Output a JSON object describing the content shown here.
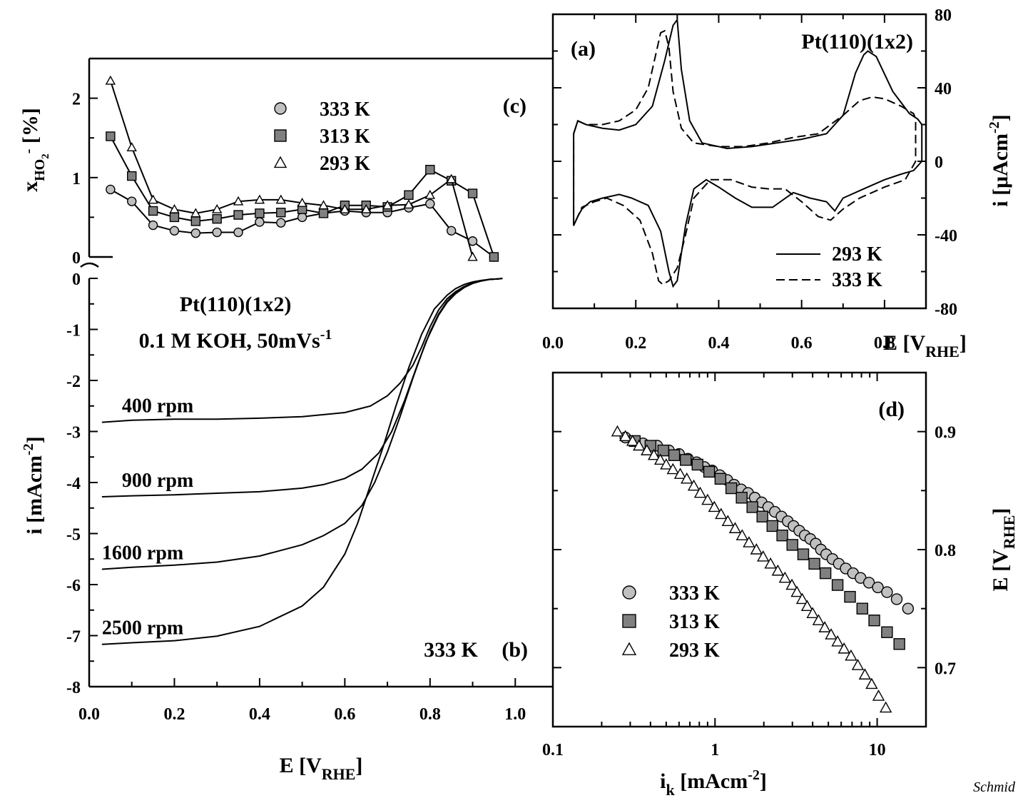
{
  "credit": "Schmid",
  "chart_data": [
    {
      "id": "a",
      "type": "line",
      "panel_label": "(a)",
      "title": "Pt(110)(1x2)",
      "xlabel": "E [V",
      "xlabel_sub": "RHE",
      "xlabel_end": "]",
      "ylabel": "i [μAcm",
      "ylabel_sup": "-2",
      "ylabel_end": "]",
      "xlim": [
        0.0,
        0.9
      ],
      "ylim": [
        -80,
        80
      ],
      "xticks": [
        "0.0",
        "0.2",
        "0.4",
        "0.6",
        "0.8"
      ],
      "yticks": [
        "80",
        "40",
        "0",
        "-40",
        "-80"
      ],
      "series": [
        {
          "name": "293 K",
          "dash": "solid",
          "x": [
            0.05,
            0.06,
            0.08,
            0.12,
            0.16,
            0.2,
            0.24,
            0.27,
            0.29,
            0.3,
            0.31,
            0.33,
            0.36,
            0.42,
            0.48,
            0.54,
            0.6,
            0.66,
            0.7,
            0.73,
            0.75,
            0.76,
            0.78,
            0.82,
            0.86,
            0.88,
            0.89,
            0.89,
            0.87,
            0.84,
            0.8,
            0.75,
            0.7,
            0.68,
            0.66,
            0.62,
            0.58,
            0.53,
            0.48,
            0.44,
            0.4,
            0.37,
            0.34,
            0.32,
            0.3,
            0.29,
            0.28,
            0.26,
            0.23,
            0.19,
            0.16,
            0.12,
            0.09,
            0.07,
            0.06,
            0.05,
            0.05
          ],
          "y": [
            15,
            22,
            20,
            18,
            17,
            20,
            30,
            55,
            74,
            77,
            50,
            22,
            10,
            7,
            8,
            10,
            12,
            15,
            25,
            48,
            58,
            60,
            57,
            38,
            26,
            23,
            20,
            0,
            -5,
            -7,
            -10,
            -15,
            -20,
            -27,
            -22,
            -20,
            -17,
            -25,
            -25,
            -20,
            -14,
            -10,
            -15,
            -35,
            -65,
            -68,
            -60,
            -38,
            -24,
            -20,
            -18,
            -20,
            -22,
            -26,
            -30,
            -35,
            -15
          ],
          "labels": false
        },
        {
          "name": "333 K",
          "dash": "dashed",
          "x": [
            0.05,
            0.06,
            0.08,
            0.12,
            0.16,
            0.2,
            0.23,
            0.25,
            0.26,
            0.27,
            0.28,
            0.29,
            0.31,
            0.34,
            0.4,
            0.46,
            0.52,
            0.58,
            0.64,
            0.7,
            0.74,
            0.77,
            0.8,
            0.84,
            0.87,
            0.875,
            0.875,
            0.85,
            0.8,
            0.74,
            0.7,
            0.67,
            0.64,
            0.6,
            0.56,
            0.52,
            0.48,
            0.43,
            0.38,
            0.34,
            0.32,
            0.3,
            0.28,
            0.265,
            0.255,
            0.24,
            0.21,
            0.17,
            0.13,
            0.1,
            0.07,
            0.06,
            0.05,
            0.05
          ],
          "y": [
            15,
            22,
            20,
            20,
            22,
            28,
            40,
            60,
            70,
            71,
            62,
            38,
            18,
            10,
            8,
            8,
            10,
            13,
            15,
            25,
            33,
            35,
            34,
            30,
            26,
            23,
            0,
            -10,
            -14,
            -20,
            -26,
            -32,
            -30,
            -22,
            -15,
            -15,
            -14,
            -10,
            -10,
            -20,
            -40,
            -58,
            -65,
            -67,
            -65,
            -50,
            -32,
            -24,
            -20,
            -22,
            -25,
            -30,
            -35,
            -15
          ]
        }
      ]
    },
    {
      "id": "b",
      "type": "line",
      "panel_label": "(b)",
      "title": "Pt(110)(1x2)",
      "subtitle": "0.1 M KOH, 50mVs",
      "subtitle_sup": "-1",
      "annotation": "333 K",
      "xlabel": "E [V",
      "xlabel_sub": "RHE",
      "xlabel_end": "]",
      "ylabel": "i [mAcm",
      "ylabel_sup": "-2",
      "ylabel_end": "]",
      "xlim": [
        0.0,
        1.1
      ],
      "ylim": [
        -8,
        0
      ],
      "xticks": [
        "0.0",
        "0.2",
        "0.4",
        "0.6",
        "0.8",
        "1.0"
      ],
      "yticks": [
        "0",
        "-1",
        "-2",
        "-3",
        "-4",
        "-5",
        "-6",
        "-7",
        "-8"
      ],
      "series": [
        {
          "name": "400 rpm",
          "x": [
            0.03,
            0.1,
            0.2,
            0.3,
            0.4,
            0.5,
            0.6,
            0.66,
            0.7,
            0.73,
            0.76,
            0.78,
            0.8,
            0.82,
            0.84,
            0.86,
            0.88,
            0.9,
            0.92,
            0.94,
            0.96,
            0.97
          ],
          "y": [
            -2.82,
            -2.78,
            -2.76,
            -2.76,
            -2.74,
            -2.71,
            -2.63,
            -2.5,
            -2.3,
            -2.05,
            -1.7,
            -1.35,
            -0.95,
            -0.62,
            -0.4,
            -0.26,
            -0.16,
            -0.09,
            -0.05,
            -0.02,
            -0.01,
            0
          ]
        },
        {
          "name": "900 rpm",
          "x": [
            0.03,
            0.1,
            0.2,
            0.3,
            0.4,
            0.5,
            0.55,
            0.6,
            0.64,
            0.68,
            0.71,
            0.74,
            0.77,
            0.8,
            0.82,
            0.84,
            0.86,
            0.88,
            0.9,
            0.92,
            0.94,
            0.96,
            0.97
          ],
          "y": [
            -4.28,
            -4.26,
            -4.24,
            -4.21,
            -4.18,
            -4.11,
            -4.04,
            -3.92,
            -3.74,
            -3.42,
            -3.0,
            -2.4,
            -1.7,
            -1.05,
            -0.7,
            -0.45,
            -0.28,
            -0.17,
            -0.1,
            -0.05,
            -0.02,
            -0.01,
            0
          ]
        },
        {
          "name": "1600 rpm",
          "x": [
            0.03,
            0.1,
            0.2,
            0.3,
            0.4,
            0.5,
            0.55,
            0.6,
            0.64,
            0.67,
            0.7,
            0.73,
            0.76,
            0.79,
            0.82,
            0.84,
            0.86,
            0.88,
            0.9,
            0.92,
            0.94,
            0.96,
            0.97
          ],
          "y": [
            -5.7,
            -5.66,
            -5.62,
            -5.56,
            -5.44,
            -5.22,
            -5.04,
            -4.8,
            -4.45,
            -4.0,
            -3.4,
            -2.7,
            -1.95,
            -1.25,
            -0.72,
            -0.47,
            -0.3,
            -0.18,
            -0.1,
            -0.05,
            -0.02,
            -0.01,
            0
          ]
        },
        {
          "name": "2500 rpm",
          "x": [
            0.03,
            0.1,
            0.2,
            0.3,
            0.4,
            0.5,
            0.55,
            0.6,
            0.63,
            0.66,
            0.69,
            0.72,
            0.75,
            0.78,
            0.81,
            0.84,
            0.86,
            0.88,
            0.9,
            0.92,
            0.94,
            0.96,
            0.97
          ],
          "y": [
            -7.17,
            -7.14,
            -7.1,
            -7.01,
            -6.82,
            -6.42,
            -6.05,
            -5.4,
            -4.8,
            -4.05,
            -3.3,
            -2.5,
            -1.75,
            -1.1,
            -0.6,
            -0.33,
            -0.2,
            -0.12,
            -0.07,
            -0.04,
            -0.02,
            -0.01,
            0
          ]
        }
      ]
    },
    {
      "id": "c",
      "type": "line",
      "panel_label": "(c)",
      "ylabel": "x",
      "ylabel_sub": "HO",
      "ylabel_sub2": "2",
      "ylabel_sup": "-",
      "ylabel_end": " [%]",
      "xlim": [
        0.0,
        1.1
      ],
      "ylim": [
        0,
        2.5
      ],
      "yticks": [
        "0",
        "1",
        "2"
      ],
      "series": [
        {
          "name": "333 K",
          "marker": "circle",
          "fill": "#c0c0c0",
          "x": [
            0.05,
            0.1,
            0.15,
            0.2,
            0.25,
            0.3,
            0.35,
            0.4,
            0.45,
            0.5,
            0.55,
            0.6,
            0.65,
            0.7,
            0.75,
            0.8,
            0.85,
            0.9,
            0.95
          ],
          "y": [
            0.85,
            0.7,
            0.4,
            0.33,
            0.3,
            0.31,
            0.31,
            0.44,
            0.43,
            0.5,
            0.55,
            0.58,
            0.56,
            0.56,
            0.62,
            0.67,
            0.33,
            0.2,
            0.0
          ]
        },
        {
          "name": "313 K",
          "marker": "square",
          "fill": "#808080",
          "x": [
            0.05,
            0.1,
            0.15,
            0.2,
            0.25,
            0.3,
            0.35,
            0.4,
            0.45,
            0.5,
            0.55,
            0.6,
            0.65,
            0.7,
            0.75,
            0.8,
            0.85,
            0.9,
            0.95
          ],
          "y": [
            1.52,
            1.02,
            0.58,
            0.5,
            0.45,
            0.48,
            0.53,
            0.55,
            0.56,
            0.6,
            0.55,
            0.65,
            0.65,
            0.63,
            0.78,
            1.1,
            0.96,
            0.8,
            0.0
          ]
        },
        {
          "name": "293 K",
          "marker": "triangle",
          "fill": "#ffffff",
          "x": [
            0.05,
            0.1,
            0.15,
            0.2,
            0.25,
            0.3,
            0.35,
            0.4,
            0.45,
            0.5,
            0.55,
            0.6,
            0.65,
            0.7,
            0.75,
            0.8,
            0.85,
            0.9
          ],
          "y": [
            2.22,
            1.38,
            0.72,
            0.6,
            0.55,
            0.6,
            0.7,
            0.72,
            0.72,
            0.68,
            0.65,
            0.6,
            0.6,
            0.65,
            0.66,
            0.78,
            0.98,
            0.0
          ]
        }
      ]
    },
    {
      "id": "d",
      "type": "scatter",
      "panel_label": "(d)",
      "xscale": "log",
      "xlabel": "i",
      "xlabel_sub": "k",
      "xlabel_mid": " [mAcm",
      "xlabel_sup": "-2",
      "xlabel_end": "]",
      "ylabel": "E [V",
      "ylabel_sub": "RHE",
      "ylabel_end": "]",
      "xlim": [
        0.1,
        20
      ],
      "ylim": [
        0.65,
        0.95
      ],
      "xticks": [
        "0.1",
        "1",
        "10"
      ],
      "yticks": [
        "0.9",
        "0.8",
        "0.7"
      ],
      "series": [
        {
          "name": "333 K",
          "marker": "circle",
          "fill": "#c0c0c0",
          "x": [
            0.28,
            0.36,
            0.44,
            0.52,
            0.6,
            0.68,
            0.77,
            0.86,
            0.96,
            1.07,
            1.19,
            1.31,
            1.45,
            1.6,
            1.76,
            1.94,
            2.13,
            2.34,
            2.57,
            2.81,
            3.05,
            3.31,
            3.58,
            3.87,
            4.18,
            4.5,
            4.85,
            5.3,
            5.8,
            6.4,
            7.1,
            7.9,
            8.9,
            10.1,
            11.5,
            13.2,
            15.5
          ],
          "y": [
            0.895,
            0.89,
            0.888,
            0.884,
            0.881,
            0.877,
            0.874,
            0.87,
            0.867,
            0.863,
            0.859,
            0.855,
            0.851,
            0.848,
            0.844,
            0.84,
            0.836,
            0.832,
            0.828,
            0.824,
            0.82,
            0.816,
            0.812,
            0.809,
            0.805,
            0.8,
            0.796,
            0.792,
            0.788,
            0.784,
            0.78,
            0.776,
            0.772,
            0.768,
            0.764,
            0.758,
            0.75
          ]
        },
        {
          "name": "313 K",
          "marker": "square",
          "fill": "#808080",
          "x": [
            0.32,
            0.4,
            0.48,
            0.56,
            0.66,
            0.78,
            0.92,
            1.08,
            1.26,
            1.46,
            1.7,
            1.96,
            2.26,
            2.6,
            3.0,
            3.5,
            4.1,
            4.8,
            5.7,
            6.8,
            8.1,
            9.6,
            11.5,
            13.7
          ],
          "y": [
            0.892,
            0.888,
            0.884,
            0.88,
            0.876,
            0.872,
            0.866,
            0.86,
            0.852,
            0.844,
            0.836,
            0.828,
            0.82,
            0.812,
            0.804,
            0.796,
            0.788,
            0.78,
            0.77,
            0.76,
            0.75,
            0.74,
            0.73,
            0.72
          ]
        },
        {
          "name": "293 K",
          "marker": "triangle",
          "fill": "#ffffff",
          "x": [
            0.25,
            0.28,
            0.31,
            0.34,
            0.38,
            0.42,
            0.46,
            0.5,
            0.55,
            0.61,
            0.67,
            0.74,
            0.81,
            0.9,
            0.99,
            1.09,
            1.2,
            1.33,
            1.47,
            1.62,
            1.8,
            1.98,
            2.2,
            2.44,
            2.7,
            2.98,
            3.2,
            3.45,
            3.7,
            4.0,
            4.35,
            4.75,
            5.2,
            5.7,
            6.25,
            6.9,
            7.6,
            8.4,
            9.25,
            10.2,
            11.3
          ],
          "y": [
            0.9,
            0.896,
            0.892,
            0.888,
            0.884,
            0.88,
            0.876,
            0.872,
            0.868,
            0.864,
            0.86,
            0.854,
            0.848,
            0.842,
            0.836,
            0.83,
            0.824,
            0.818,
            0.812,
            0.806,
            0.8,
            0.794,
            0.788,
            0.782,
            0.776,
            0.77,
            0.764,
            0.758,
            0.752,
            0.746,
            0.74,
            0.734,
            0.728,
            0.722,
            0.716,
            0.71,
            0.702,
            0.694,
            0.686,
            0.676,
            0.666
          ]
        }
      ]
    }
  ]
}
